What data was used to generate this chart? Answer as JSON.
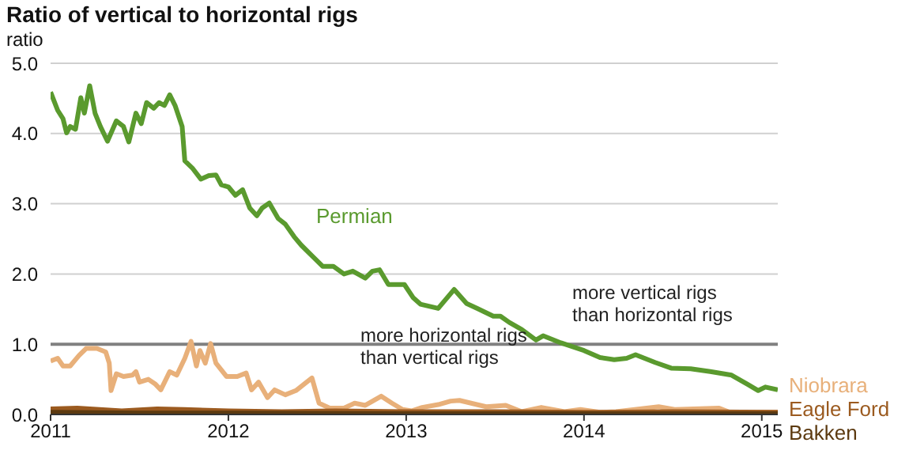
{
  "chart_data": {
    "type": "line",
    "title": "Ratio of vertical to horizontal rigs",
    "ylabel": "ratio",
    "xlim": [
      2011,
      2015.09
    ],
    "xticks": [
      2011,
      2012,
      2013,
      2014,
      2015
    ],
    "ylim": [
      0,
      5
    ],
    "yticks": [
      {
        "value": 0,
        "label": "0.0"
      },
      {
        "value": 1,
        "label": "1.0"
      },
      {
        "value": 2,
        "label": "2.0"
      },
      {
        "value": 3,
        "label": "3.0"
      },
      {
        "value": 4,
        "label": "4.0"
      },
      {
        "value": 5,
        "label": "5.0"
      }
    ],
    "grid": "y",
    "ref_lines": [
      {
        "axis": "y",
        "value": 1,
        "color": "#808080"
      }
    ],
    "annotations": [
      "more vertical rigs\nthan horizontal rigs",
      "more horizontal rigs\nthan vertical rigs"
    ],
    "series": [
      {
        "name": "Permian",
        "color": "#5a9a2e",
        "x": [
          2011.0,
          2011.04,
          2011.07,
          2011.09,
          2011.11,
          2011.14,
          2011.17,
          2011.19,
          2011.22,
          2011.25,
          2011.28,
          2011.32,
          2011.37,
          2011.41,
          2011.44,
          2011.48,
          2011.51,
          2011.54,
          2011.58,
          2011.61,
          2011.64,
          2011.67,
          2011.7,
          2011.74,
          2011.755,
          2011.8,
          2011.845,
          2011.89,
          2011.93,
          2011.96,
          2012.0,
          2012.04,
          2012.08,
          2012.12,
          2012.16,
          2012.19,
          2012.23,
          2012.28,
          2012.32,
          2012.37,
          2012.41,
          2012.47,
          2012.53,
          2012.59,
          2012.65,
          2012.7,
          2012.77,
          2012.81,
          2012.85,
          2012.9,
          2012.99,
          2013.04,
          2013.08,
          2013.18,
          2013.27,
          2013.34,
          2013.4,
          2013.49,
          2013.53,
          2013.58,
          2013.65,
          2013.73,
          2013.77,
          2013.87,
          2014.0,
          2014.09,
          2014.17,
          2014.24,
          2014.29,
          2014.4,
          2014.49,
          2014.6,
          2014.71,
          2014.83,
          2014.92,
          2014.98,
          2015.02,
          2015.09
        ],
        "values": [
          4.59,
          4.33,
          4.21,
          4.01,
          4.1,
          4.06,
          4.51,
          4.29,
          4.68,
          4.29,
          4.1,
          3.89,
          4.18,
          4.1,
          3.88,
          4.29,
          4.14,
          4.44,
          4.36,
          4.44,
          4.4,
          4.55,
          4.4,
          4.1,
          3.61,
          3.5,
          3.35,
          3.4,
          3.41,
          3.27,
          3.24,
          3.12,
          3.2,
          2.94,
          2.83,
          2.94,
          3.01,
          2.79,
          2.71,
          2.53,
          2.41,
          2.26,
          2.11,
          2.11,
          2.0,
          2.04,
          1.94,
          2.04,
          2.06,
          1.85,
          1.85,
          1.66,
          1.57,
          1.51,
          1.78,
          1.58,
          1.51,
          1.4,
          1.4,
          1.31,
          1.21,
          1.06,
          1.12,
          1.02,
          0.91,
          0.81,
          0.78,
          0.8,
          0.85,
          0.74,
          0.66,
          0.65,
          0.61,
          0.56,
          0.43,
          0.34,
          0.39,
          0.35
        ]
      },
      {
        "name": "Niobrara",
        "color": "#e8b07a",
        "x": [
          2011.0,
          2011.04,
          2011.07,
          2011.11,
          2011.16,
          2011.2,
          2011.26,
          2011.31,
          2011.33,
          2011.34,
          2011.37,
          2011.41,
          2011.46,
          2011.48,
          2011.5,
          2011.55,
          2011.59,
          2011.62,
          2011.67,
          2011.71,
          2011.755,
          2011.79,
          2011.82,
          2011.84,
          2011.87,
          2011.9,
          2011.93,
          2011.99,
          2012.05,
          2012.1,
          2012.13,
          2012.17,
          2012.22,
          2012.26,
          2012.32,
          2012.38,
          2012.44,
          2012.47,
          2012.51,
          2012.57,
          2012.65,
          2012.71,
          2012.77,
          2012.86,
          2012.92,
          2012.98,
          2013.03,
          2013.09,
          2013.18,
          2013.25,
          2013.3,
          2013.45,
          2013.56,
          2013.65,
          2013.76,
          2013.89,
          2013.98,
          2014.09,
          2014.18,
          2014.42,
          2014.51,
          2014.76,
          2014.82,
          2014.98,
          2015.09
        ],
        "values": [
          0.76,
          0.8,
          0.69,
          0.69,
          0.84,
          0.94,
          0.94,
          0.89,
          0.73,
          0.34,
          0.58,
          0.54,
          0.56,
          0.61,
          0.46,
          0.5,
          0.43,
          0.35,
          0.61,
          0.56,
          0.8,
          1.04,
          0.69,
          0.91,
          0.73,
          1.01,
          0.73,
          0.54,
          0.54,
          0.59,
          0.35,
          0.46,
          0.24,
          0.35,
          0.28,
          0.34,
          0.46,
          0.52,
          0.16,
          0.09,
          0.09,
          0.16,
          0.13,
          0.26,
          0.16,
          0.07,
          0.05,
          0.1,
          0.14,
          0.19,
          0.2,
          0.11,
          0.13,
          0.04,
          0.1,
          0.04,
          0.07,
          0.03,
          0.04,
          0.11,
          0.07,
          0.09,
          0.03,
          0.03,
          0.03
        ]
      },
      {
        "name": "Eagle Ford",
        "color": "#9b5a1f",
        "x": [
          2011.0,
          2011.15,
          2011.4,
          2011.6,
          2011.75,
          2012.0,
          2012.3,
          2012.6,
          2013.0,
          2013.5,
          2014.0,
          2014.5,
          2015.09
        ],
        "values": [
          0.08,
          0.09,
          0.05,
          0.08,
          0.07,
          0.05,
          0.04,
          0.05,
          0.04,
          0.04,
          0.03,
          0.04,
          0.03
        ]
      },
      {
        "name": "Bakken",
        "color": "#5c3a10",
        "x": [
          2011.0,
          2011.5,
          2012.0,
          2013.0,
          2014.0,
          2015.09
        ],
        "values": [
          0.03,
          0.02,
          0.02,
          0.01,
          0.01,
          0.01
        ]
      }
    ]
  }
}
